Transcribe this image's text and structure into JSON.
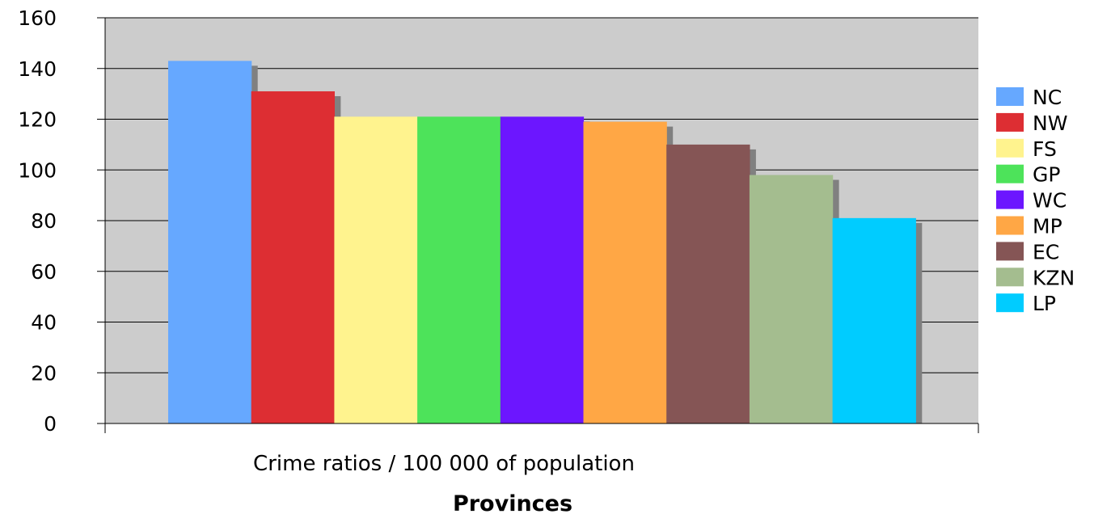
{
  "chart_data": {
    "type": "bar",
    "category": "Crime ratios / 100 000 of population",
    "xlabel": "Provinces",
    "ylabel": "",
    "ylim": [
      0,
      160
    ],
    "yticks": [
      0,
      20,
      40,
      60,
      80,
      100,
      120,
      140,
      160
    ],
    "grid": true,
    "legend_position": "right",
    "series": [
      {
        "name": "NC",
        "value": 143,
        "color": "#66A8FF"
      },
      {
        "name": "NW",
        "value": 131,
        "color": "#DD2E33"
      },
      {
        "name": "FS",
        "value": 121,
        "color": "#FFF38E"
      },
      {
        "name": "GP",
        "value": 121,
        "color": "#4DE35A"
      },
      {
        "name": "WC",
        "value": 121,
        "color": "#6C16FF"
      },
      {
        "name": "MP",
        "value": 119,
        "color": "#FFA745"
      },
      {
        "name": "EC",
        "value": 110,
        "color": "#855555"
      },
      {
        "name": "KZN",
        "value": 98,
        "color": "#A4BD8F"
      },
      {
        "name": "LP",
        "value": 81,
        "color": "#00CCFF"
      }
    ]
  }
}
